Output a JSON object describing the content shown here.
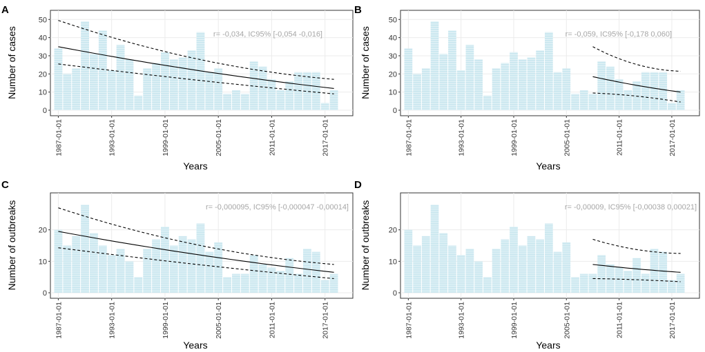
{
  "figure": {
    "bar_color": "#cce8f0",
    "bar_stripe_color": "#ffffff",
    "fit_color": "#000000",
    "annotation_color": "#a6a6a6"
  },
  "chart_data": [
    {
      "panel": "A",
      "type": "bar",
      "xlabel": "Years",
      "ylabel": "Number of cases",
      "x_tick_labels": [
        "1987-01-01",
        "1993-01-01",
        "1999-01-01",
        "2005-01-01",
        "2011-01-01",
        "2017-01-01"
      ],
      "x_tick_years": [
        1987,
        1993,
        1999,
        2005,
        2011,
        2017
      ],
      "y_ticks": [
        0,
        10,
        20,
        30,
        40,
        50
      ],
      "ylim": [
        0,
        52
      ],
      "years": [
        1987,
        1988,
        1989,
        1990,
        1991,
        1992,
        1993,
        1994,
        1995,
        1996,
        1997,
        1998,
        1999,
        2000,
        2001,
        2002,
        2003,
        2004,
        2005,
        2006,
        2007,
        2008,
        2009,
        2010,
        2011,
        2012,
        2013,
        2014,
        2015,
        2016,
        2017,
        2018
      ],
      "values": [
        34,
        20,
        23,
        49,
        31,
        44,
        22,
        36,
        28,
        8,
        23,
        26,
        32,
        28,
        29,
        33,
        43,
        21,
        23,
        9,
        11,
        9,
        27,
        24,
        17,
        11,
        16,
        21,
        21,
        21,
        4,
        11
      ],
      "fit": {
        "x": [
          1987,
          2018
        ],
        "y": [
          35,
          12
        ],
        "lower": [
          25.5,
          9
        ],
        "upper": [
          49.5,
          17
        ]
      },
      "annotation": "r= -0,034, IC95% [-0,054 -0,016]"
    },
    {
      "panel": "B",
      "type": "bar",
      "xlabel": "Years",
      "ylabel": "Number of cases",
      "x_tick_labels": [
        "1987-01-01",
        "1993-01-01",
        "1999-01-01",
        "2005-01-01",
        "2011-01-01",
        "2017-01-01"
      ],
      "x_tick_years": [
        1987,
        1993,
        1999,
        2005,
        2011,
        2017
      ],
      "y_ticks": [
        0,
        10,
        20,
        30,
        40,
        50
      ],
      "ylim": [
        0,
        52
      ],
      "years": [
        1987,
        1988,
        1989,
        1990,
        1991,
        1992,
        1993,
        1994,
        1995,
        1996,
        1997,
        1998,
        1999,
        2000,
        2001,
        2002,
        2003,
        2004,
        2005,
        2006,
        2007,
        2008,
        2009,
        2010,
        2011,
        2012,
        2013,
        2014,
        2015,
        2016,
        2017,
        2018
      ],
      "values": [
        34,
        20,
        23,
        49,
        31,
        44,
        22,
        36,
        28,
        8,
        23,
        26,
        32,
        28,
        29,
        33,
        43,
        21,
        23,
        9,
        11,
        9,
        27,
        24,
        17,
        11,
        16,
        21,
        21,
        21,
        4,
        11
      ],
      "fit": {
        "x": [
          2008,
          2018
        ],
        "y": [
          18.5,
          10
        ],
        "lower": [
          9.5,
          4.5
        ],
        "upper": [
          35,
          21.5
        ]
      },
      "annotation": "r= -0,059, IC95% [-0,178 0,060]"
    },
    {
      "panel": "C",
      "type": "bar",
      "xlabel": "Years",
      "ylabel": "Number of outbreaks",
      "x_tick_labels": [
        "1987-01-01",
        "1993-01-01",
        "1999-01-01",
        "2005-01-01",
        "2011-01-01",
        "2017-01-01"
      ],
      "x_tick_years": [
        1987,
        1993,
        1999,
        2005,
        2011,
        2017
      ],
      "y_ticks": [
        0,
        10,
        20
      ],
      "ylim": [
        0,
        30
      ],
      "years": [
        1987,
        1988,
        1989,
        1990,
        1991,
        1992,
        1993,
        1994,
        1995,
        1996,
        1997,
        1998,
        1999,
        2000,
        2001,
        2002,
        2003,
        2004,
        2005,
        2006,
        2007,
        2008,
        2009,
        2010,
        2011,
        2012,
        2013,
        2014,
        2015,
        2016,
        2017,
        2018
      ],
      "values": [
        20,
        15,
        18,
        28,
        19,
        15,
        12,
        14,
        10,
        5,
        14,
        17,
        21,
        15,
        18,
        17,
        22,
        13,
        16,
        5,
        6,
        6,
        12,
        9,
        8,
        7,
        11,
        6,
        14,
        13,
        4,
        6
      ],
      "fit": {
        "x": [
          1987,
          2018
        ],
        "y": [
          19.5,
          6.5
        ],
        "lower": [
          14.3,
          4.5
        ],
        "upper": [
          27,
          9
        ]
      },
      "annotation": "r= -0,000095, IC95% [-0,000047 -0,00014]"
    },
    {
      "panel": "D",
      "type": "bar",
      "xlabel": "Years",
      "ylabel": "Number of outbreaks",
      "x_tick_labels": [
        "1987-01-01",
        "1993-01-01",
        "1999-01-01",
        "2005-01-01",
        "2011-01-01",
        "2017-01-01"
      ],
      "x_tick_years": [
        1987,
        1993,
        1999,
        2005,
        2011,
        2017
      ],
      "y_ticks": [
        0,
        10,
        20
      ],
      "ylim": [
        0,
        30
      ],
      "years": [
        1987,
        1988,
        1989,
        1990,
        1991,
        1992,
        1993,
        1994,
        1995,
        1996,
        1997,
        1998,
        1999,
        2000,
        2001,
        2002,
        2003,
        2004,
        2005,
        2006,
        2007,
        2008,
        2009,
        2010,
        2011,
        2012,
        2013,
        2014,
        2015,
        2016,
        2017,
        2018
      ],
      "values": [
        20,
        15,
        18,
        28,
        19,
        15,
        12,
        14,
        10,
        5,
        14,
        17,
        21,
        15,
        18,
        17,
        22,
        13,
        16,
        5,
        6,
        6,
        12,
        9,
        8,
        7,
        11,
        6,
        14,
        13,
        4,
        6
      ],
      "fit": {
        "x": [
          2008,
          2018
        ],
        "y": [
          9,
          6.5
        ],
        "lower": [
          4.5,
          3.5
        ],
        "upper": [
          17,
          12.5
        ]
      },
      "annotation": "r= -0,00009, IC95% [-0,00038 0,00021]"
    }
  ]
}
